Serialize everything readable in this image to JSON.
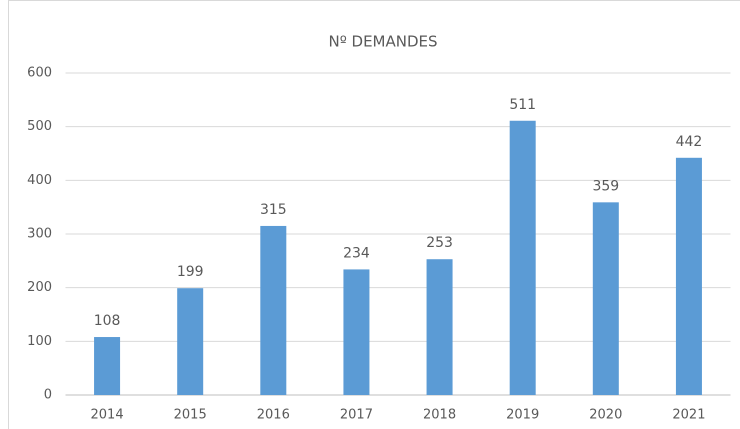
{
  "chart_data": {
    "type": "bar",
    "title": "Nº DEMANDES",
    "categories": [
      "2014",
      "2015",
      "2016",
      "2017",
      "2018",
      "2019",
      "2020",
      "2021"
    ],
    "values": [
      108,
      199,
      315,
      234,
      253,
      511,
      359,
      442
    ],
    "color": "#5b9bd5",
    "ylim": [
      0,
      600
    ],
    "yticks": [
      0,
      100,
      200,
      300,
      400,
      500,
      600
    ],
    "grid": true
  }
}
